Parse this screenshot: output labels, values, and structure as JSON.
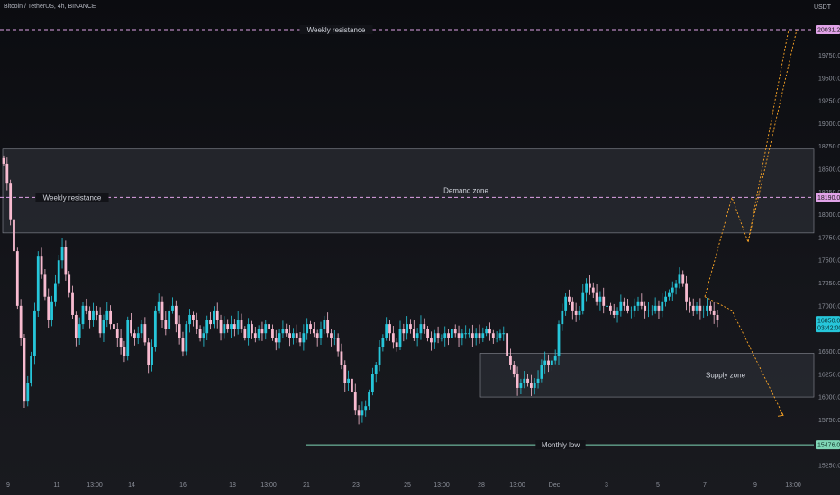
{
  "header": {
    "symbol_title": "Bitcoin / TetherUS, 4h, BINANCE",
    "currency": "USDT"
  },
  "colors": {
    "up": "#26c6da",
    "down": "#f8bbd0",
    "resistance": "#e1a3e8",
    "monthly_low": "#7fd6b6",
    "path": "#ffa726",
    "zone_fill": "#2a2c33",
    "zone_stroke": "#8a8d96"
  },
  "annotations": {
    "weekly_resistance_top": {
      "label": "Weekly resistance",
      "price": 20031.24
    },
    "weekly_resistance_mid": {
      "label": "Weekly resistance",
      "price": 18190.0
    },
    "monthly_low": {
      "label": "Monthly low",
      "price": 15476.0
    },
    "demand_zone": {
      "label": "Demand zone",
      "top": 18720,
      "bottom": 17800
    },
    "supply_zone": {
      "label": "Supply zone",
      "top": 16480,
      "bottom": 16000
    }
  },
  "price_tags": {
    "top_resistance": "20031.24",
    "mid_resistance": "18190.00",
    "current_price": "16850.00",
    "countdown": "03:42:00",
    "monthly_low": "15476.00"
  },
  "y_axis": {
    "ticks": [
      "19750.00",
      "19500.00",
      "19250.00",
      "19000.00",
      "18750.00",
      "18500.00",
      "18250.00",
      "18000.00",
      "17750.00",
      "17500.00",
      "17250.00",
      "17000.00",
      "16500.00",
      "16250.00",
      "16000.00",
      "15750.00",
      "15250.00"
    ],
    "range": [
      15180,
      20140
    ]
  },
  "x_axis": {
    "ticks": [
      "9",
      "11",
      "13:00",
      "14",
      "16",
      "18",
      "13:00",
      "21",
      "23",
      "25",
      "13:00",
      "28",
      "13:00",
      "Dec",
      "3",
      "5",
      "7",
      "9",
      "13:00"
    ]
  },
  "chart_data": {
    "type": "candlestick",
    "closes": [
      18560,
      18350,
      17950,
      17600,
      17000,
      16650,
      15950,
      16150,
      16450,
      16950,
      17550,
      17350,
      17100,
      16850,
      17050,
      17250,
      17500,
      17650,
      17350,
      17150,
      16900,
      16650,
      16800,
      17000,
      16950,
      16850,
      16950,
      16900,
      16700,
      16850,
      16950,
      16800,
      16750,
      16650,
      16550,
      16450,
      16850,
      16700,
      16650,
      16700,
      16800,
      16600,
      16350,
      16550,
      16950,
      17050,
      16850,
      16750,
      16950,
      17000,
      16800,
      16650,
      16500,
      16800,
      16900,
      16850,
      16750,
      16650,
      16700,
      16850,
      16800,
      16950,
      16850,
      16700,
      16800,
      16750,
      16800,
      16750,
      16850,
      16750,
      16650,
      16800,
      16700,
      16650,
      16750,
      16700,
      16800,
      16750,
      16650,
      16600,
      16700,
      16750,
      16700,
      16650,
      16700,
      16650,
      16600,
      16700,
      16800,
      16750,
      16700,
      16650,
      16750,
      16850,
      16700,
      16650,
      16650,
      16500,
      16350,
      16150,
      16200,
      16050,
      15850,
      15800,
      15850,
      15900,
      16050,
      16250,
      16350,
      16550,
      16650,
      16800,
      16700,
      16600,
      16550,
      16750,
      16700,
      16800,
      16750,
      16650,
      16700,
      16800,
      16750,
      16650,
      16600,
      16700,
      16650,
      16650,
      16700,
      16650,
      16750,
      16700,
      16650,
      16700,
      16700,
      16700,
      16650,
      16700,
      16650,
      16700,
      16750,
      16700,
      16650,
      16650,
      16700,
      16700,
      16450,
      16350,
      16250,
      16100,
      16150,
      16200,
      16150,
      16100,
      16150,
      16200,
      16350,
      16400,
      16350,
      16400,
      16450,
      16800,
      16950,
      17100,
      17050,
      16950,
      16900,
      16950,
      17150,
      17250,
      17200,
      17150,
      17050,
      17100,
      17000,
      17000,
      16950,
      16900,
      16950,
      17050,
      17000,
      16950,
      16950,
      17000,
      17050,
      17000,
      16950,
      16950,
      16950,
      17000,
      16950,
      17050,
      17100,
      17150,
      17200,
      17250,
      17350,
      17250,
      17050,
      17000,
      16950,
      17000,
      16950,
      16950,
      17000,
      16950,
      16900,
      16850
    ],
    "projection": [
      {
        "x": 0.0,
        "y": 17100
      },
      {
        "x": 1.0,
        "y": 18190
      },
      {
        "x": 1.6,
        "y": 17700
      },
      {
        "x": 3.4,
        "y": 20031
      },
      {
        "x": 3.4,
        "y": 20031
      },
      {
        "x": 1.0,
        "y": 16950
      },
      {
        "x": 2.9,
        "y": 15800
      }
    ]
  }
}
